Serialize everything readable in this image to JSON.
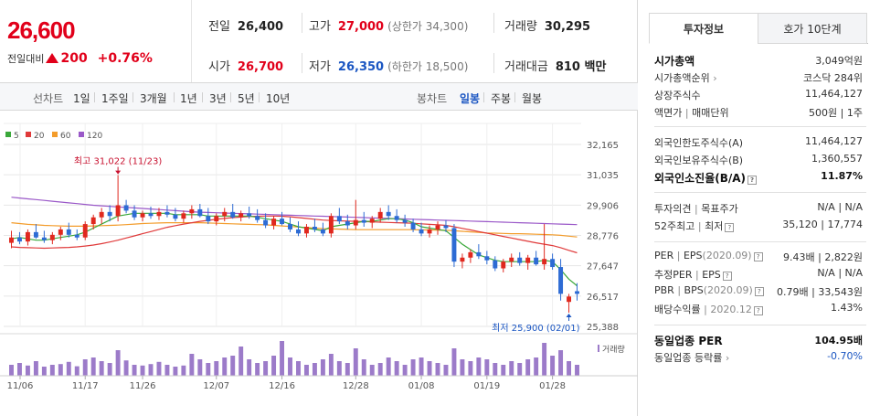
{
  "quote": {
    "price": "26,600",
    "change_label": "전일대비",
    "change": "200",
    "change_pct": "+0.76%",
    "prev": {
      "label": "전일",
      "value": "26,400"
    },
    "high": {
      "label": "고가",
      "value": "27,000",
      "sub": "(상한가 34,300)"
    },
    "volume": {
      "label": "거래량",
      "value": "30,295"
    },
    "open": {
      "label": "시가",
      "value": "26,700"
    },
    "low": {
      "label": "저가",
      "value": "26,350",
      "sub": "(하한가 18,500)"
    },
    "amount": {
      "label": "거래대금",
      "value": "810 백만"
    }
  },
  "tabbar": {
    "line_title": "선차트",
    "line_tabs": [
      "1일",
      "1주일",
      "3개월",
      "1년",
      "3년",
      "5년",
      "10년"
    ],
    "candle_title": "봉차트",
    "candle_tabs": [
      "일봉",
      "주봉",
      "월봉"
    ],
    "candle_active": "일봉"
  },
  "legend": [
    {
      "name": "5",
      "color": "#3aa83a"
    },
    {
      "name": "20",
      "color": "#e03a3a"
    },
    {
      "name": "60",
      "color": "#f39c2b"
    },
    {
      "name": "120",
      "color": "#9a58c8"
    }
  ],
  "chart_data": {
    "type": "candlestick",
    "y_ticks": [
      "32,165",
      "31,035",
      "29,906",
      "28,776",
      "27,647",
      "26,517",
      "25,388"
    ],
    "ylim": [
      25388,
      32165
    ],
    "x_ticks": [
      "11/06",
      "11/17",
      "11/26",
      "12/07",
      "12/16",
      "12/28",
      "01/08",
      "01/19",
      "01/28"
    ],
    "high_label": "최고 31,022 (11/23)",
    "low_label": "최저 25,900 (02/01)",
    "volume_label": "거래량",
    "up_color": "#e0281e",
    "down_color": "#2d6bd4",
    "candles": [
      [
        28500,
        28950,
        28300,
        28700
      ],
      [
        28700,
        28900,
        28450,
        28550
      ],
      [
        28550,
        29000,
        28400,
        28900
      ],
      [
        28900,
        29200,
        28650,
        28700
      ],
      [
        28700,
        28950,
        28500,
        28600
      ],
      [
        28600,
        28900,
        28450,
        28800
      ],
      [
        28800,
        29100,
        28600,
        29000
      ],
      [
        29000,
        29250,
        28700,
        28800
      ],
      [
        28800,
        29000,
        28600,
        28700
      ],
      [
        28700,
        29300,
        28600,
        29200
      ],
      [
        29200,
        29550,
        29000,
        29450
      ],
      [
        29450,
        29800,
        29200,
        29650
      ],
      [
        29650,
        29900,
        29300,
        29500
      ],
      [
        29500,
        31022,
        29300,
        29900
      ],
      [
        29900,
        30100,
        29600,
        29700
      ],
      [
        29700,
        29900,
        29350,
        29450
      ],
      [
        29450,
        29700,
        29300,
        29600
      ],
      [
        29600,
        29850,
        29400,
        29500
      ],
      [
        29500,
        29800,
        29350,
        29650
      ],
      [
        29650,
        29900,
        29450,
        29550
      ],
      [
        29550,
        29800,
        29300,
        29400
      ],
      [
        29400,
        29700,
        29250,
        29600
      ],
      [
        29600,
        29900,
        29400,
        29750
      ],
      [
        29750,
        29950,
        29450,
        29500
      ],
      [
        29500,
        29800,
        29200,
        29300
      ],
      [
        29300,
        29600,
        29150,
        29500
      ],
      [
        29500,
        29800,
        29300,
        29650
      ],
      [
        29650,
        29950,
        29400,
        29450
      ],
      [
        29450,
        29700,
        29300,
        29600
      ],
      [
        29600,
        29850,
        29400,
        29500
      ],
      [
        29500,
        29750,
        29250,
        29350
      ],
      [
        29350,
        29600,
        29050,
        29150
      ],
      [
        29150,
        29500,
        29000,
        29400
      ],
      [
        29400,
        29650,
        29150,
        29200
      ],
      [
        29200,
        29450,
        28900,
        29000
      ],
      [
        29000,
        29300,
        28750,
        28850
      ],
      [
        28850,
        29200,
        28700,
        29100
      ],
      [
        29100,
        29400,
        28900,
        29000
      ],
      [
        29000,
        29250,
        28750,
        28850
      ],
      [
        28850,
        29600,
        28700,
        29500
      ],
      [
        29500,
        29800,
        29200,
        29300
      ],
      [
        29300,
        29550,
        29000,
        29150
      ],
      [
        29150,
        30100,
        29000,
        29350
      ],
      [
        29350,
        29650,
        29100,
        29250
      ],
      [
        29250,
        29500,
        29050,
        29400
      ],
      [
        29400,
        29800,
        29250,
        29650
      ],
      [
        29650,
        29900,
        29350,
        29500
      ],
      [
        29500,
        29750,
        29250,
        29350
      ],
      [
        29350,
        29550,
        29100,
        29250
      ],
      [
        29250,
        29400,
        28900,
        29000
      ],
      [
        29000,
        29250,
        28750,
        28850
      ],
      [
        28850,
        29150,
        28700,
        29000
      ],
      [
        29000,
        29300,
        28800,
        29150
      ],
      [
        29150,
        29350,
        28900,
        29050
      ],
      [
        29050,
        29200,
        27600,
        27800
      ],
      [
        27800,
        28100,
        27550,
        27950
      ],
      [
        27950,
        28250,
        27750,
        28150
      ],
      [
        28150,
        28450,
        27900,
        28000
      ],
      [
        28000,
        28200,
        27700,
        27850
      ],
      [
        27850,
        28000,
        27450,
        27550
      ],
      [
        27550,
        27900,
        27400,
        27800
      ],
      [
        27800,
        28100,
        27600,
        27950
      ],
      [
        27950,
        28150,
        27650,
        27750
      ],
      [
        27750,
        28050,
        27500,
        27950
      ],
      [
        27950,
        28200,
        27650,
        27700
      ],
      [
        27700,
        29200,
        27500,
        27900
      ],
      [
        27900,
        28100,
        27500,
        27600
      ],
      [
        27600,
        27900,
        26350,
        26600
      ],
      [
        26300,
        26600,
        25900,
        26500
      ],
      [
        26700,
        27000,
        26350,
        26600
      ]
    ],
    "ma5": [
      28650,
      28700,
      28650,
      28600,
      28600,
      28650,
      28700,
      28750,
      28800,
      28900,
      29050,
      29200,
      29350,
      29500,
      29550,
      29600,
      29600,
      29600,
      29600,
      29600,
      29550,
      29550,
      29550,
      29550,
      29500,
      29500,
      29500,
      29500,
      29500,
      29500,
      29450,
      29400,
      29350,
      29300,
      29200,
      29100,
      29050,
      29000,
      28950,
      29100,
      29150,
      29200,
      29250,
      29300,
      29300,
      29350,
      29400,
      29400,
      29350,
      29250,
      29100,
      29050,
      29000,
      28950,
      28700,
      28450,
      28250,
      28050,
      27950,
      27850,
      27800,
      27800,
      27800,
      27800,
      27800,
      27850,
      27800,
      27500,
      27150,
      26900
    ],
    "ma20": [
      28350,
      28330,
      28320,
      28310,
      28300,
      28310,
      28320,
      28330,
      28350,
      28380,
      28420,
      28470,
      28530,
      28600,
      28680,
      28760,
      28840,
      28920,
      29000,
      29080,
      29140,
      29200,
      29250,
      29300,
      29340,
      29380,
      29410,
      29440,
      29460,
      29480,
      29490,
      29500,
      29500,
      29490,
      29470,
      29440,
      29410,
      29380,
      29350,
      29330,
      29320,
      29310,
      29300,
      29290,
      29280,
      29270,
      29260,
      29250,
      29240,
      29230,
      29210,
      29190,
      29170,
      29150,
      29100,
      29040,
      28980,
      28920,
      28860,
      28800,
      28740,
      28680,
      28620,
      28560,
      28500,
      28450,
      28400,
      28320,
      28220,
      28130
    ],
    "ma60": [
      29250,
      29220,
      29190,
      29170,
      29150,
      29140,
      29130,
      29120,
      29120,
      29120,
      29130,
      29140,
      29150,
      29160,
      29180,
      29200,
      29220,
      29230,
      29240,
      29250,
      29250,
      29250,
      29250,
      29250,
      29240,
      29230,
      29220,
      29210,
      29200,
      29190,
      29180,
      29170,
      29150,
      29130,
      29110,
      29090,
      29070,
      29050,
      29030,
      29020,
      29010,
      29000,
      28990,
      28990,
      28990,
      28990,
      28990,
      28990,
      28990,
      28990,
      28980,
      28980,
      28970,
      28970,
      28950,
      28930,
      28910,
      28890,
      28870,
      28860,
      28850,
      28840,
      28840,
      28830,
      28820,
      28810,
      28800,
      28780,
      28750,
      28720
    ],
    "ma120": [
      30200,
      30170,
      30140,
      30110,
      30080,
      30050,
      30020,
      29990,
      29960,
      29930,
      29900,
      29880,
      29860,
      29840,
      29820,
      29800,
      29780,
      29760,
      29740,
      29720,
      29700,
      29680,
      29660,
      29640,
      29630,
      29620,
      29610,
      29600,
      29590,
      29580,
      29570,
      29560,
      29550,
      29540,
      29530,
      29520,
      29510,
      29500,
      29490,
      29480,
      29470,
      29460,
      29450,
      29440,
      29430,
      29420,
      29410,
      29400,
      29390,
      29380,
      29370,
      29360,
      29350,
      29340,
      29330,
      29320,
      29310,
      29300,
      29290,
      29280,
      29270,
      29260,
      29250,
      29240,
      29230,
      29220,
      29210,
      29200,
      29190,
      29180
    ],
    "volumes": [
      30,
      35,
      28,
      40,
      25,
      30,
      32,
      38,
      26,
      45,
      50,
      40,
      35,
      70,
      42,
      30,
      28,
      32,
      38,
      30,
      25,
      28,
      60,
      45,
      35,
      40,
      50,
      55,
      80,
      45,
      35,
      40,
      55,
      95,
      50,
      40,
      30,
      35,
      45,
      60,
      40,
      35,
      75,
      45,
      30,
      35,
      50,
      40,
      30,
      45,
      50,
      40,
      35,
      30,
      75,
      45,
      40,
      50,
      45,
      35,
      30,
      40,
      35,
      45,
      50,
      90,
      55,
      70,
      40,
      30
    ]
  },
  "panel": {
    "tab_info": "투자정보",
    "tab_hoga": "호가 10단계",
    "mktcap": {
      "label": "시가총액",
      "value": "3,049억원"
    },
    "mktcap_rank": {
      "label": "시가총액순위",
      "value": "코스닥 284위"
    },
    "shares": {
      "label": "상장주식수",
      "value": "11,464,127"
    },
    "face": {
      "label": "액면가",
      "sep": "|",
      "label2": "매매단위",
      "value": "500원",
      "value2": "1주"
    },
    "foreign_limit": {
      "label": "외국인한도주식수(A)",
      "value": "11,464,127"
    },
    "foreign_hold": {
      "label": "외국인보유주식수(B)",
      "value": "1,360,557"
    },
    "foreign_rate": {
      "label": "외국인소진율(B/A)",
      "value": "11.87%"
    },
    "opinion": {
      "label": "투자의견",
      "label2": "목표주가",
      "value": "N/A",
      "value2": "N/A"
    },
    "w52": {
      "label": "52주최고",
      "label2": "최저",
      "value": "35,120",
      "value2": "17,774"
    },
    "per": {
      "label": "PER",
      "label2": "EPS",
      "period": "(2020.09)",
      "value": "9.43배",
      "value2": "2,822원"
    },
    "est_per": {
      "label": "추정PER",
      "label2": "EPS",
      "value": "N/A",
      "value2": "N/A"
    },
    "pbr": {
      "label": "PBR",
      "label2": "BPS",
      "period": "(2020.09)",
      "value": "0.79배",
      "value2": "33,543원"
    },
    "div": {
      "label": "배당수익률",
      "period": "2020.12",
      "value": "1.43%"
    },
    "ind_per": {
      "label": "동일업종 PER",
      "value": "104.95배"
    },
    "ind_rate": {
      "label": "동일업종 등락률",
      "value": "-0.70%"
    }
  }
}
